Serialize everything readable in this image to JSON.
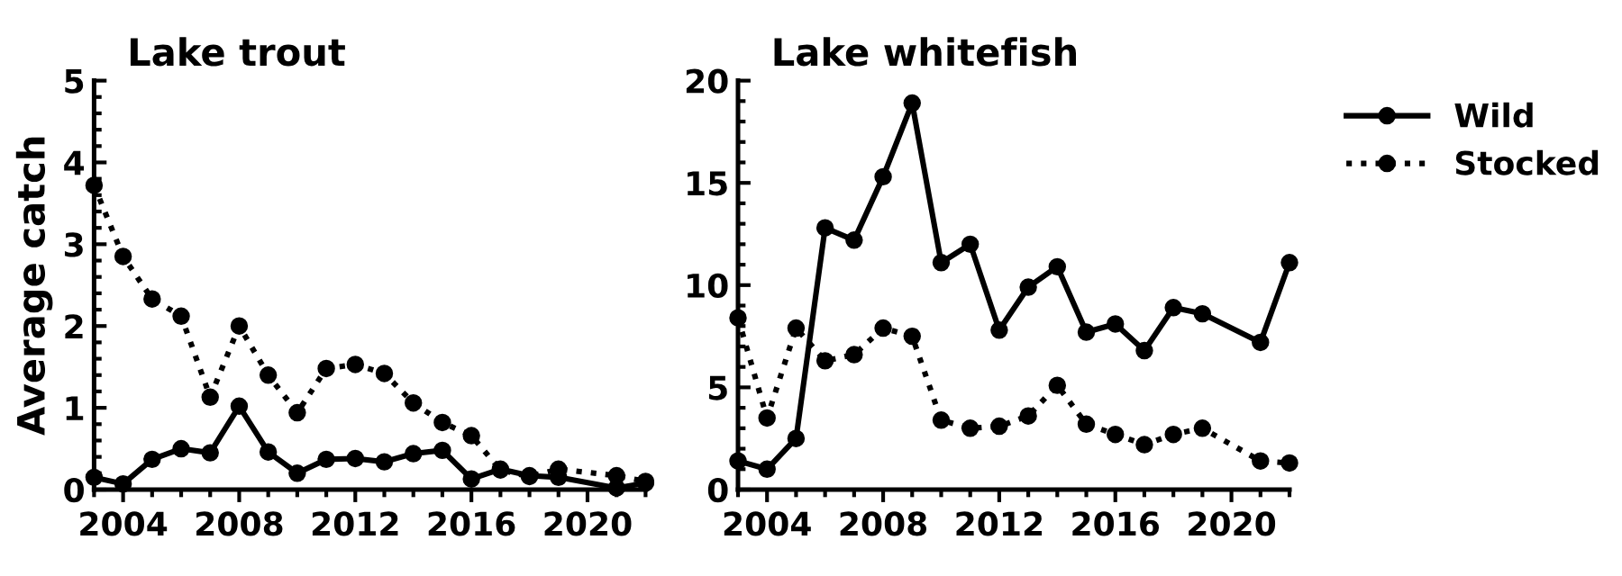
{
  "chart_data": [
    {
      "type": "line",
      "title": "Lake trout",
      "ylabel": "Average catch",
      "xlim": [
        2003,
        2022
      ],
      "xticks": [
        2004,
        2008,
        2012,
        2016,
        2020
      ],
      "ylim": [
        0,
        5
      ],
      "yticks": [
        0,
        1,
        2,
        3,
        4,
        5
      ],
      "grid": false,
      "marker": "circle",
      "x": [
        2003,
        2004,
        2005,
        2006,
        2007,
        2008,
        2009,
        2010,
        2011,
        2012,
        2013,
        2014,
        2015,
        2016,
        2017,
        2018,
        2019,
        2021,
        2022
      ],
      "series": [
        {
          "color": "#000000",
          "line_style": "solid",
          "values": [
            0.15,
            0.07,
            0.37,
            0.5,
            0.45,
            1.02,
            0.46,
            0.2,
            0.37,
            0.38,
            0.34,
            0.44,
            0.48,
            0.13,
            0.25,
            0.17,
            0.15,
            0.02,
            0.08
          ]
        },
        {
          "color": "#000000",
          "line_style": "dotted",
          "values": [
            3.72,
            2.85,
            2.33,
            2.12,
            1.13,
            2.0,
            1.4,
            0.94,
            1.48,
            1.53,
            1.42,
            1.06,
            0.82,
            0.66,
            0.24,
            0.16,
            0.25,
            0.17,
            0.1
          ]
        }
      ]
    },
    {
      "type": "line",
      "title": "Lake whitefish",
      "xlim": [
        2003,
        2022
      ],
      "xticks": [
        2004,
        2008,
        2012,
        2016,
        2020
      ],
      "ylim": [
        0,
        20
      ],
      "yticks": [
        0,
        5,
        10,
        15,
        20
      ],
      "grid": false,
      "legend": "right",
      "marker": "circle",
      "x": [
        2003,
        2004,
        2005,
        2006,
        2007,
        2008,
        2009,
        2010,
        2011,
        2012,
        2013,
        2014,
        2015,
        2016,
        2017,
        2018,
        2019,
        2021,
        2022
      ],
      "series": [
        {
          "name": "Wild",
          "color": "#000000",
          "line_style": "solid",
          "values": [
            1.4,
            1.0,
            2.5,
            12.8,
            12.2,
            15.3,
            18.9,
            11.1,
            12.0,
            7.8,
            9.9,
            10.9,
            7.7,
            8.1,
            6.8,
            8.9,
            8.6,
            7.2,
            11.1
          ]
        },
        {
          "name": "Stocked",
          "color": "#000000",
          "line_style": "dotted",
          "values": [
            8.4,
            3.5,
            7.9,
            6.3,
            6.6,
            7.9,
            7.5,
            3.4,
            3.0,
            3.1,
            3.6,
            5.1,
            3.2,
            2.7,
            2.2,
            2.7,
            3.0,
            1.4,
            1.3
          ]
        }
      ]
    }
  ]
}
